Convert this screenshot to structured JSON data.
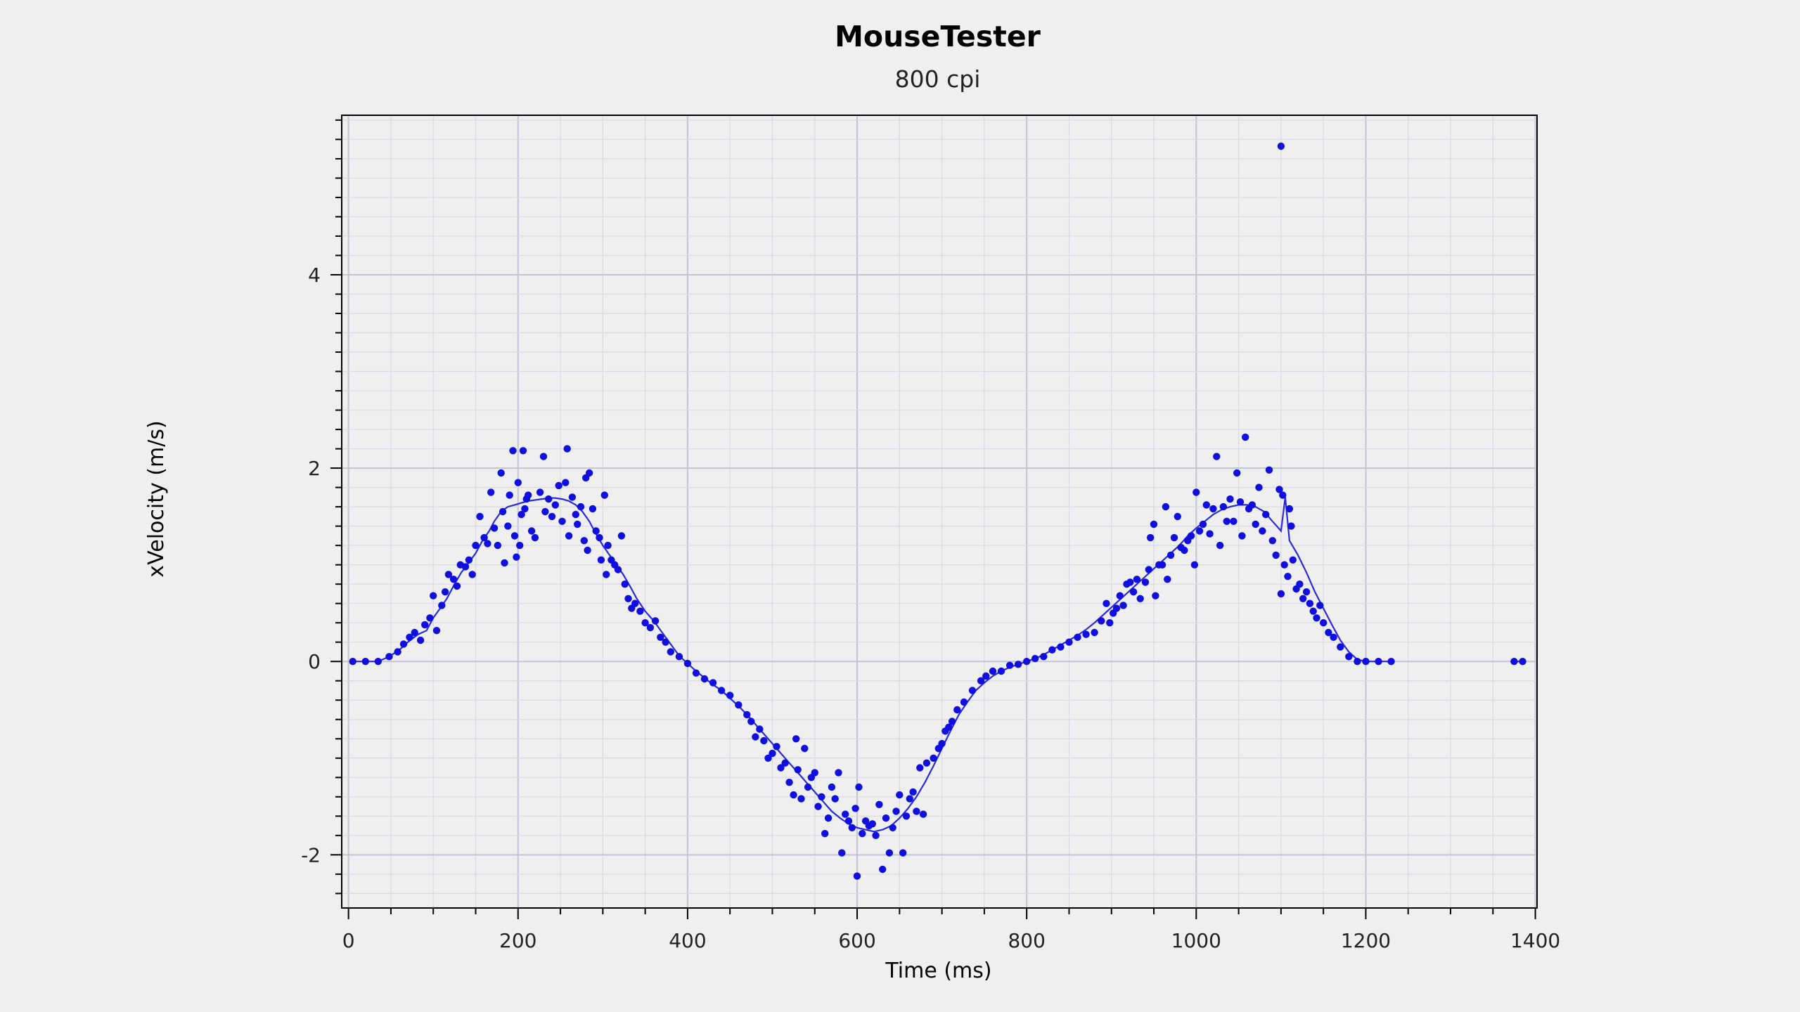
{
  "chart_data": {
    "type": "scatter",
    "title": "MouseTester",
    "subtitle": "800 cpi",
    "xlabel": "Time (ms)",
    "ylabel": "xVelocity (m/s)",
    "xlim": [
      -8,
      1402
    ],
    "ylim": [
      -2.55,
      5.65
    ],
    "x_ticks": [
      0,
      200,
      400,
      600,
      800,
      1000,
      1200,
      1400
    ],
    "y_ticks": [
      -2,
      0,
      2,
      4
    ],
    "grid": true,
    "legend": "none",
    "colors": {
      "background": "#efefef",
      "plot_background": "#efefef",
      "point": "#0f0fe0",
      "line": "#2a2ad8",
      "major_grid": "#c3c3d8",
      "minor_grid": "#d8d8e6",
      "axis": "#000000"
    },
    "series": [
      {
        "points": [
          [
            5,
            0
          ],
          [
            20,
            0
          ],
          [
            35,
            0
          ],
          [
            48,
            0.05
          ],
          [
            60,
            0.12
          ],
          [
            70,
            0.2
          ],
          [
            82,
            0.28
          ],
          [
            92,
            0.32
          ],
          [
            100,
            0.45
          ],
          [
            108,
            0.55
          ],
          [
            116,
            0.65
          ],
          [
            125,
            0.8
          ],
          [
            133,
            0.92
          ],
          [
            140,
            1.0
          ],
          [
            150,
            1.12
          ],
          [
            158,
            1.25
          ],
          [
            166,
            1.35
          ],
          [
            172,
            1.45
          ],
          [
            180,
            1.55
          ],
          [
            188,
            1.6
          ],
          [
            196,
            1.62
          ],
          [
            204,
            1.64
          ],
          [
            212,
            1.66
          ],
          [
            220,
            1.67
          ],
          [
            228,
            1.68
          ],
          [
            236,
            1.69
          ],
          [
            244,
            1.69
          ],
          [
            252,
            1.68
          ],
          [
            260,
            1.66
          ],
          [
            268,
            1.62
          ],
          [
            276,
            1.55
          ],
          [
            284,
            1.45
          ],
          [
            292,
            1.32
          ],
          [
            300,
            1.2
          ],
          [
            308,
            1.1
          ],
          [
            316,
            1.0
          ],
          [
            324,
            0.9
          ],
          [
            332,
            0.78
          ],
          [
            340,
            0.65
          ],
          [
            350,
            0.52
          ],
          [
            360,
            0.42
          ],
          [
            370,
            0.3
          ],
          [
            380,
            0.18
          ],
          [
            390,
            0.06
          ],
          [
            400,
            -0.02
          ],
          [
            410,
            -0.1
          ],
          [
            420,
            -0.17
          ],
          [
            430,
            -0.24
          ],
          [
            440,
            -0.3
          ],
          [
            450,
            -0.38
          ],
          [
            460,
            -0.46
          ],
          [
            470,
            -0.55
          ],
          [
            480,
            -0.65
          ],
          [
            490,
            -0.75
          ],
          [
            500,
            -0.85
          ],
          [
            510,
            -0.95
          ],
          [
            520,
            -1.05
          ],
          [
            530,
            -1.15
          ],
          [
            540,
            -1.25
          ],
          [
            550,
            -1.35
          ],
          [
            560,
            -1.45
          ],
          [
            570,
            -1.55
          ],
          [
            580,
            -1.62
          ],
          [
            590,
            -1.68
          ],
          [
            600,
            -1.72
          ],
          [
            610,
            -1.74
          ],
          [
            620,
            -1.76
          ],
          [
            630,
            -1.74
          ],
          [
            640,
            -1.7
          ],
          [
            650,
            -1.62
          ],
          [
            660,
            -1.52
          ],
          [
            670,
            -1.4
          ],
          [
            680,
            -1.25
          ],
          [
            690,
            -1.08
          ],
          [
            700,
            -0.9
          ],
          [
            710,
            -0.72
          ],
          [
            720,
            -0.55
          ],
          [
            730,
            -0.42
          ],
          [
            740,
            -0.3
          ],
          [
            750,
            -0.22
          ],
          [
            760,
            -0.15
          ],
          [
            770,
            -0.1
          ],
          [
            780,
            -0.06
          ],
          [
            790,
            -0.03
          ],
          [
            800,
            0
          ],
          [
            810,
            0.03
          ],
          [
            820,
            0.07
          ],
          [
            830,
            0.12
          ],
          [
            840,
            0.17
          ],
          [
            850,
            0.22
          ],
          [
            860,
            0.27
          ],
          [
            870,
            0.33
          ],
          [
            880,
            0.4
          ],
          [
            890,
            0.48
          ],
          [
            900,
            0.56
          ],
          [
            910,
            0.64
          ],
          [
            920,
            0.72
          ],
          [
            930,
            0.8
          ],
          [
            940,
            0.88
          ],
          [
            950,
            0.96
          ],
          [
            960,
            1.04
          ],
          [
            970,
            1.12
          ],
          [
            980,
            1.2
          ],
          [
            990,
            1.3
          ],
          [
            1000,
            1.38
          ],
          [
            1010,
            1.45
          ],
          [
            1020,
            1.52
          ],
          [
            1030,
            1.57
          ],
          [
            1040,
            1.6
          ],
          [
            1050,
            1.62
          ],
          [
            1060,
            1.62
          ],
          [
            1070,
            1.6
          ],
          [
            1080,
            1.55
          ],
          [
            1090,
            1.45
          ],
          [
            1100,
            1.35
          ],
          [
            1105,
            1.7
          ],
          [
            1110,
            1.25
          ],
          [
            1120,
            1.1
          ],
          [
            1130,
            0.92
          ],
          [
            1140,
            0.72
          ],
          [
            1150,
            0.55
          ],
          [
            1160,
            0.38
          ],
          [
            1170,
            0.22
          ],
          [
            1180,
            0.1
          ],
          [
            1190,
            0.02
          ],
          [
            1200,
            0
          ],
          [
            1215,
            0
          ],
          [
            1230,
            0
          ],
          [
            1375,
            0
          ],
          [
            1385,
            0
          ],
          [
            1100,
            5.33
          ]
        ]
      }
    ],
    "scatter_points": [
      [
        5,
        0
      ],
      [
        20,
        0
      ],
      [
        35,
        0
      ],
      [
        48,
        0.05
      ],
      [
        58,
        0.1
      ],
      [
        65,
        0.18
      ],
      [
        72,
        0.25
      ],
      [
        78,
        0.3
      ],
      [
        85,
        0.22
      ],
      [
        90,
        0.38
      ],
      [
        96,
        0.45
      ],
      [
        100,
        0.68
      ],
      [
        104,
        0.32
      ],
      [
        110,
        0.58
      ],
      [
        114,
        0.72
      ],
      [
        118,
        0.9
      ],
      [
        124,
        0.85
      ],
      [
        128,
        0.78
      ],
      [
        132,
        1.0
      ],
      [
        138,
        0.98
      ],
      [
        142,
        1.05
      ],
      [
        146,
        0.9
      ],
      [
        150,
        1.2
      ],
      [
        155,
        1.5
      ],
      [
        160,
        1.28
      ],
      [
        164,
        1.22
      ],
      [
        168,
        1.75
      ],
      [
        172,
        1.38
      ],
      [
        176,
        1.2
      ],
      [
        180,
        1.95
      ],
      [
        182,
        1.55
      ],
      [
        184,
        1.02
      ],
      [
        188,
        1.4
      ],
      [
        190,
        1.72
      ],
      [
        194,
        2.18
      ],
      [
        196,
        1.3
      ],
      [
        198,
        1.08
      ],
      [
        200,
        1.85
      ],
      [
        202,
        1.2
      ],
      [
        204,
        1.52
      ],
      [
        206,
        2.18
      ],
      [
        208,
        1.58
      ],
      [
        210,
        1.68
      ],
      [
        212,
        1.72
      ],
      [
        216,
        1.35
      ],
      [
        220,
        1.28
      ],
      [
        226,
        1.75
      ],
      [
        230,
        2.12
      ],
      [
        232,
        1.55
      ],
      [
        236,
        1.68
      ],
      [
        240,
        1.5
      ],
      [
        244,
        1.62
      ],
      [
        248,
        1.82
      ],
      [
        252,
        1.45
      ],
      [
        256,
        1.85
      ],
      [
        258,
        2.2
      ],
      [
        260,
        1.3
      ],
      [
        264,
        1.7
      ],
      [
        268,
        1.52
      ],
      [
        270,
        1.42
      ],
      [
        274,
        1.6
      ],
      [
        278,
        1.25
      ],
      [
        280,
        1.9
      ],
      [
        282,
        1.15
      ],
      [
        284,
        1.95
      ],
      [
        288,
        1.58
      ],
      [
        292,
        1.35
      ],
      [
        296,
        1.28
      ],
      [
        298,
        1.05
      ],
      [
        302,
        1.72
      ],
      [
        304,
        0.9
      ],
      [
        306,
        1.2
      ],
      [
        310,
        1.05
      ],
      [
        314,
        1.0
      ],
      [
        318,
        0.95
      ],
      [
        322,
        1.3
      ],
      [
        326,
        0.8
      ],
      [
        330,
        0.65
      ],
      [
        334,
        0.55
      ],
      [
        338,
        0.6
      ],
      [
        344,
        0.52
      ],
      [
        350,
        0.4
      ],
      [
        356,
        0.35
      ],
      [
        362,
        0.42
      ],
      [
        368,
        0.25
      ],
      [
        374,
        0.2
      ],
      [
        380,
        0.1
      ],
      [
        390,
        0.05
      ],
      [
        400,
        -0.02
      ],
      [
        410,
        -0.12
      ],
      [
        420,
        -0.18
      ],
      [
        430,
        -0.22
      ],
      [
        440,
        -0.3
      ],
      [
        450,
        -0.35
      ],
      [
        460,
        -0.45
      ],
      [
        470,
        -0.55
      ],
      [
        475,
        -0.62
      ],
      [
        480,
        -0.78
      ],
      [
        485,
        -0.7
      ],
      [
        490,
        -0.82
      ],
      [
        495,
        -1.0
      ],
      [
        500,
        -0.95
      ],
      [
        505,
        -0.88
      ],
      [
        510,
        -1.1
      ],
      [
        515,
        -1.05
      ],
      [
        520,
        -1.25
      ],
      [
        525,
        -1.38
      ],
      [
        528,
        -0.8
      ],
      [
        530,
        -1.12
      ],
      [
        534,
        -1.42
      ],
      [
        538,
        -0.9
      ],
      [
        542,
        -1.3
      ],
      [
        546,
        -1.2
      ],
      [
        550,
        -1.15
      ],
      [
        554,
        -1.5
      ],
      [
        558,
        -1.4
      ],
      [
        562,
        -1.78
      ],
      [
        566,
        -1.62
      ],
      [
        570,
        -1.3
      ],
      [
        574,
        -1.42
      ],
      [
        578,
        -1.15
      ],
      [
        582,
        -1.98
      ],
      [
        586,
        -1.58
      ],
      [
        590,
        -1.65
      ],
      [
        594,
        -1.72
      ],
      [
        598,
        -1.52
      ],
      [
        600,
        -2.22
      ],
      [
        602,
        -1.3
      ],
      [
        606,
        -1.78
      ],
      [
        610,
        -1.65
      ],
      [
        614,
        -1.7
      ],
      [
        618,
        -1.68
      ],
      [
        622,
        -1.8
      ],
      [
        626,
        -1.48
      ],
      [
        630,
        -2.15
      ],
      [
        634,
        -1.62
      ],
      [
        638,
        -1.98
      ],
      [
        642,
        -1.72
      ],
      [
        646,
        -1.55
      ],
      [
        650,
        -1.38
      ],
      [
        654,
        -1.98
      ],
      [
        658,
        -1.6
      ],
      [
        662,
        -1.42
      ],
      [
        666,
        -1.35
      ],
      [
        670,
        -1.55
      ],
      [
        674,
        -1.1
      ],
      [
        678,
        -1.58
      ],
      [
        682,
        -1.05
      ],
      [
        690,
        -1.0
      ],
      [
        696,
        -0.9
      ],
      [
        700,
        -0.85
      ],
      [
        704,
        -0.72
      ],
      [
        708,
        -0.68
      ],
      [
        712,
        -0.62
      ],
      [
        718,
        -0.5
      ],
      [
        726,
        -0.42
      ],
      [
        736,
        -0.3
      ],
      [
        746,
        -0.2
      ],
      [
        752,
        -0.15
      ],
      [
        760,
        -0.1
      ],
      [
        770,
        -0.1
      ],
      [
        780,
        -0.04
      ],
      [
        790,
        -0.03
      ],
      [
        800,
        0
      ],
      [
        810,
        0.03
      ],
      [
        820,
        0.05
      ],
      [
        830,
        0.12
      ],
      [
        840,
        0.15
      ],
      [
        850,
        0.2
      ],
      [
        860,
        0.25
      ],
      [
        870,
        0.28
      ],
      [
        880,
        0.3
      ],
      [
        888,
        0.42
      ],
      [
        894,
        0.6
      ],
      [
        898,
        0.4
      ],
      [
        902,
        0.5
      ],
      [
        906,
        0.55
      ],
      [
        910,
        0.68
      ],
      [
        914,
        0.58
      ],
      [
        918,
        0.8
      ],
      [
        922,
        0.82
      ],
      [
        926,
        0.72
      ],
      [
        930,
        0.85
      ],
      [
        934,
        0.65
      ],
      [
        940,
        0.82
      ],
      [
        944,
        0.95
      ],
      [
        946,
        1.28
      ],
      [
        950,
        1.42
      ],
      [
        952,
        0.68
      ],
      [
        956,
        1.0
      ],
      [
        960,
        1.0
      ],
      [
        964,
        1.6
      ],
      [
        966,
        0.85
      ],
      [
        970,
        1.1
      ],
      [
        974,
        1.28
      ],
      [
        978,
        1.5
      ],
      [
        982,
        1.18
      ],
      [
        986,
        1.15
      ],
      [
        990,
        1.25
      ],
      [
        994,
        1.3
      ],
      [
        998,
        1.0
      ],
      [
        1000,
        1.75
      ],
      [
        1004,
        1.35
      ],
      [
        1008,
        1.42
      ],
      [
        1012,
        1.62
      ],
      [
        1016,
        1.32
      ],
      [
        1020,
        1.58
      ],
      [
        1024,
        2.12
      ],
      [
        1028,
        1.2
      ],
      [
        1032,
        1.6
      ],
      [
        1036,
        1.45
      ],
      [
        1040,
        1.68
      ],
      [
        1044,
        1.45
      ],
      [
        1048,
        1.95
      ],
      [
        1052,
        1.65
      ],
      [
        1054,
        1.3
      ],
      [
        1058,
        2.32
      ],
      [
        1062,
        1.58
      ],
      [
        1066,
        1.62
      ],
      [
        1070,
        1.42
      ],
      [
        1074,
        1.8
      ],
      [
        1078,
        1.35
      ],
      [
        1082,
        1.52
      ],
      [
        1086,
        1.98
      ],
      [
        1090,
        1.25
      ],
      [
        1094,
        1.1
      ],
      [
        1098,
        1.78
      ],
      [
        1100,
        0.7
      ],
      [
        1102,
        1.72
      ],
      [
        1104,
        1.0
      ],
      [
        1108,
        0.88
      ],
      [
        1110,
        1.58
      ],
      [
        1112,
        1.4
      ],
      [
        1114,
        1.05
      ],
      [
        1118,
        0.75
      ],
      [
        1122,
        0.8
      ],
      [
        1126,
        0.65
      ],
      [
        1130,
        0.72
      ],
      [
        1134,
        0.6
      ],
      [
        1138,
        0.52
      ],
      [
        1142,
        0.45
      ],
      [
        1146,
        0.58
      ],
      [
        1150,
        0.4
      ],
      [
        1156,
        0.3
      ],
      [
        1162,
        0.25
      ],
      [
        1170,
        0.15
      ],
      [
        1180,
        0.05
      ],
      [
        1190,
        0
      ],
      [
        1200,
        0
      ],
      [
        1215,
        0
      ],
      [
        1230,
        0
      ],
      [
        1375,
        0
      ],
      [
        1385,
        0
      ],
      [
        1100,
        5.33
      ]
    ]
  }
}
